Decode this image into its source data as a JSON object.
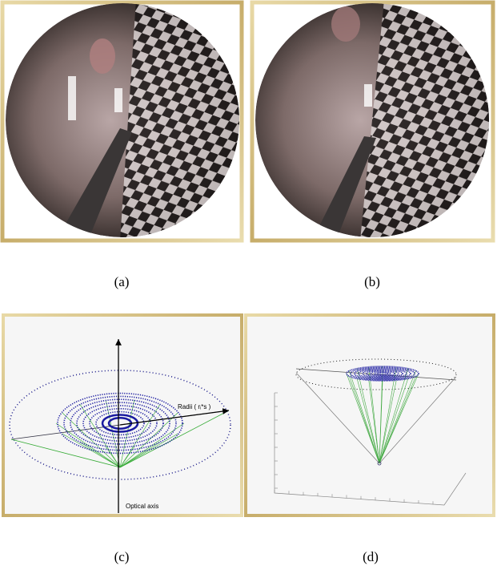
{
  "figure": {
    "panels": [
      {
        "label": "(a)"
      },
      {
        "label": "(b)"
      },
      {
        "label": "(c)",
        "annotations": [
          "Radii ( rᵢ*s )",
          "Optical axis"
        ]
      },
      {
        "label": "(d)"
      }
    ]
  }
}
